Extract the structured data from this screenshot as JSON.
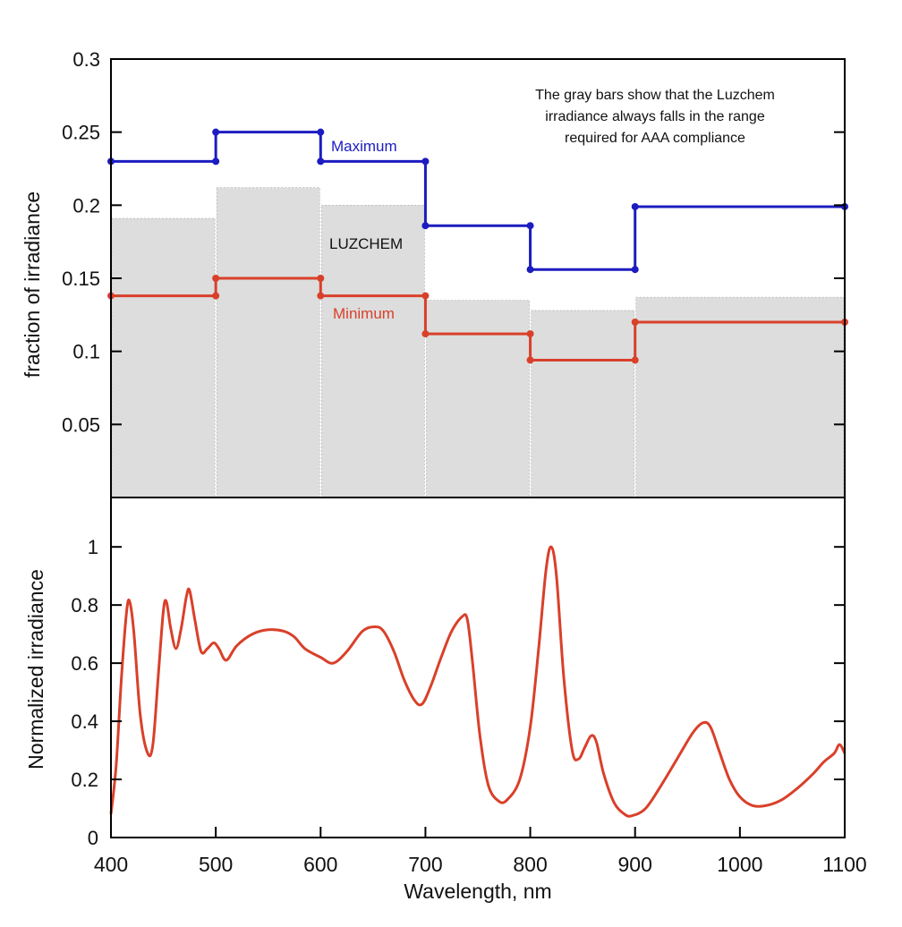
{
  "chart_data": [
    {
      "type": "bar",
      "title": "",
      "ylabel": "fraction of irradiance",
      "xlabel": "",
      "xlim": [
        400,
        1100
      ],
      "ylim": [
        0,
        0.3
      ],
      "yticks": [
        "0.3",
        "0.25",
        "0.2",
        "0.15",
        "0.1",
        "0.05"
      ],
      "ytick_values": [
        0.3,
        0.25,
        0.2,
        0.15,
        0.1,
        0.05
      ],
      "bins": [
        [
          400,
          500
        ],
        [
          500,
          600
        ],
        [
          600,
          700
        ],
        [
          700,
          800
        ],
        [
          800,
          900
        ],
        [
          900,
          1100
        ]
      ],
      "bar_label": "LUZCHEM",
      "bar_color": "#dcdddc",
      "bar_values": [
        0.191,
        0.212,
        0.2,
        0.135,
        0.128,
        0.137
      ],
      "series": [
        {
          "name": "Maximum",
          "color": "#1c1cc0",
          "values": [
            0.23,
            0.25,
            0.23,
            0.186,
            0.156,
            0.199
          ]
        },
        {
          "name": "Minimum",
          "color": "#d9402a",
          "values": [
            0.138,
            0.15,
            0.138,
            0.112,
            0.094,
            0.12
          ]
        }
      ],
      "annotation": [
        "The gray bars show that the Luzchem",
        "irradiance always falls in the range",
        "required for AAA compliance"
      ]
    },
    {
      "type": "line",
      "xlabel": "Wavelength, nm",
      "ylabel": "Normalized irradiance",
      "xlim": [
        400,
        1100
      ],
      "ylim": [
        0,
        1.17
      ],
      "xticks": [
        "400",
        "500",
        "600",
        "700",
        "800",
        "900",
        "1000",
        "1100"
      ],
      "xtick_values": [
        400,
        500,
        600,
        700,
        800,
        900,
        1000,
        1100
      ],
      "yticks": [
        "0",
        "0.2",
        "0.4",
        "0.6",
        "0.8",
        "1"
      ],
      "ytick_values": [
        0,
        0.2,
        0.4,
        0.6,
        0.8,
        1
      ],
      "series": [
        {
          "name": "Normalized irradiance",
          "color": "#d9402a",
          "x": [
            400,
            405,
            410,
            415,
            418,
            422,
            428,
            435,
            440,
            445,
            450,
            453,
            457,
            462,
            467,
            472,
            475,
            480,
            486,
            492,
            498,
            503,
            510,
            520,
            535,
            550,
            565,
            575,
            585,
            600,
            612,
            625,
            640,
            652,
            660,
            670,
            680,
            690,
            697,
            705,
            715,
            725,
            735,
            740,
            745,
            752,
            760,
            770,
            778,
            790,
            800,
            808,
            815,
            820,
            825,
            832,
            840,
            846,
            852,
            858,
            863,
            870,
            880,
            890,
            897,
            910,
            925,
            940,
            955,
            965,
            972,
            980,
            990,
            1000,
            1012,
            1025,
            1040,
            1055,
            1070,
            1080,
            1090,
            1095,
            1100
          ],
          "y": [
            0.08,
            0.25,
            0.55,
            0.78,
            0.81,
            0.7,
            0.42,
            0.29,
            0.32,
            0.55,
            0.78,
            0.81,
            0.72,
            0.65,
            0.72,
            0.83,
            0.85,
            0.75,
            0.64,
            0.65,
            0.67,
            0.65,
            0.61,
            0.66,
            0.7,
            0.715,
            0.71,
            0.69,
            0.65,
            0.62,
            0.6,
            0.64,
            0.71,
            0.725,
            0.71,
            0.64,
            0.54,
            0.47,
            0.46,
            0.52,
            0.62,
            0.71,
            0.76,
            0.75,
            0.6,
            0.35,
            0.18,
            0.125,
            0.13,
            0.2,
            0.38,
            0.65,
            0.92,
            1.0,
            0.9,
            0.55,
            0.3,
            0.27,
            0.31,
            0.35,
            0.33,
            0.22,
            0.12,
            0.08,
            0.075,
            0.1,
            0.18,
            0.27,
            0.36,
            0.395,
            0.38,
            0.3,
            0.2,
            0.14,
            0.11,
            0.11,
            0.13,
            0.17,
            0.22,
            0.26,
            0.29,
            0.32,
            0.29
          ]
        }
      ]
    }
  ]
}
